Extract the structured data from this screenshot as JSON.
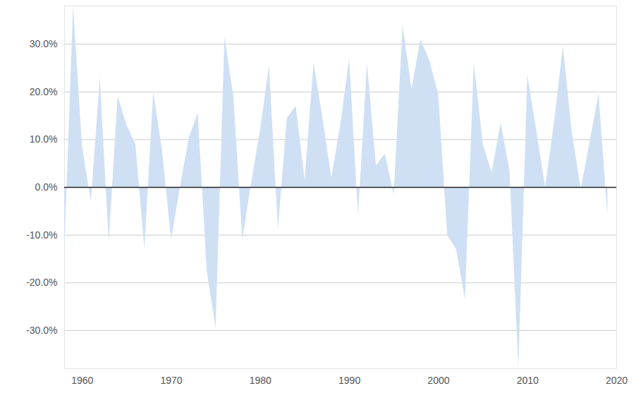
{
  "chart_data": {
    "type": "area",
    "color": "#cfe0f5",
    "x": [
      1958,
      1959,
      1960,
      1961,
      1962,
      1963,
      1964,
      1965,
      1966,
      1967,
      1968,
      1969,
      1970,
      1971,
      1972,
      1973,
      1974,
      1975,
      1976,
      1977,
      1978,
      1979,
      1980,
      1981,
      1982,
      1983,
      1984,
      1985,
      1986,
      1987,
      1988,
      1989,
      1990,
      1991,
      1992,
      1993,
      1994,
      1995,
      1996,
      1997,
      1998,
      1999,
      2000,
      2001,
      2002,
      2003,
      2004,
      2005,
      2006,
      2007,
      2008,
      2009,
      2010,
      2011,
      2012,
      2013,
      2014,
      2015,
      2016,
      2017,
      2018,
      2019
    ],
    "values": [
      -14,
      38,
      8.5,
      -3,
      23,
      -11.5,
      19,
      13,
      9,
      -13,
      20,
      7.5,
      -11,
      0,
      10.5,
      15.5,
      -17.5,
      -29.5,
      31.5,
      19,
      -11,
      1,
      12,
      25.5,
      -9,
      14.5,
      17,
      1.5,
      26,
      14.5,
      2,
      13,
      27,
      -6,
      26,
      4.5,
      7,
      -1.5,
      34,
      20.5,
      31,
      26.5,
      19.5,
      -10,
      -13,
      -23.5,
      26,
      9,
      3,
      13.5,
      3.5,
      -38,
      23.5,
      12,
      0,
      13.5,
      29.5,
      11.5,
      -0.5,
      9.5,
      19.5,
      -6
    ],
    "xlim": [
      1958,
      2020
    ],
    "xticks": [
      1960,
      1970,
      1980,
      1990,
      2000,
      2010,
      2020
    ],
    "ylim": [
      -38,
      38
    ],
    "yticks": [
      {
        "value": -30,
        "label": "-30.0%"
      },
      {
        "value": -20,
        "label": "-20.0%"
      },
      {
        "value": -10,
        "label": "-10.0%"
      },
      {
        "value": 0,
        "label": "0.0%"
      },
      {
        "value": 10,
        "label": "10.0%"
      },
      {
        "value": 20,
        "label": "20.0%"
      },
      {
        "value": 30,
        "label": "30.0%"
      }
    ],
    "grid": true
  }
}
